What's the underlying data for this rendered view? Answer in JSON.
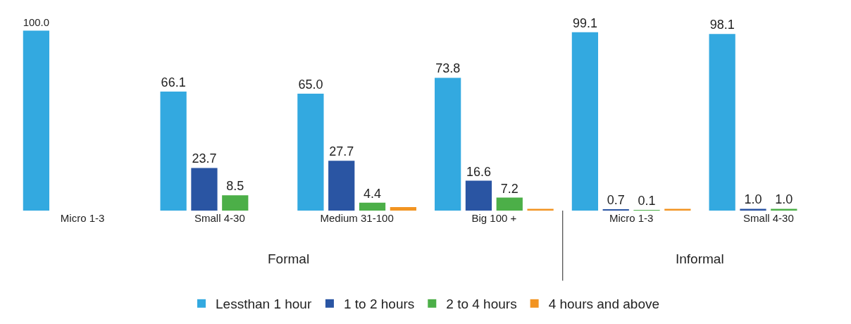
{
  "chart_data": {
    "type": "bar",
    "categories": [
      "Micro 1-3",
      "Small 4-30",
      "Medium 31-100",
      "Big 100 +",
      "Micro 1-3",
      "Small 4-30"
    ],
    "series": [
      {
        "name": "Lessthan 1 hour",
        "color": "#33a9e0",
        "values": [
          100.0,
          66.1,
          65.0,
          73.8,
          99.1,
          98.1
        ],
        "value_labels": [
          "100.0",
          "66.1",
          "65.0",
          "73.8",
          "99.1",
          "98.1"
        ]
      },
      {
        "name": "1 to 2 hours",
        "color": "#2a55a3",
        "values": [
          null,
          23.7,
          27.7,
          16.6,
          0.7,
          1.0
        ],
        "value_labels": [
          null,
          "23.7",
          "27.7",
          "16.6",
          "0.7",
          "1.0"
        ]
      },
      {
        "name": "2 to 4 hours",
        "color": "#4caf48",
        "values": [
          null,
          8.5,
          4.4,
          7.2,
          0.1,
          1.0
        ],
        "value_labels": [
          null,
          "8.5",
          "4.4",
          "7.2",
          "0.1",
          "1.0"
        ]
      },
      {
        "name": "4 hours and above",
        "color": "#f29422",
        "values": [
          null,
          null,
          2.0,
          1.0,
          1.0,
          null
        ],
        "value_labels": [
          null,
          null,
          null,
          null,
          null,
          null
        ]
      }
    ],
    "annotations": [
      "Formal",
      "Informal"
    ],
    "legend": "bottom"
  }
}
